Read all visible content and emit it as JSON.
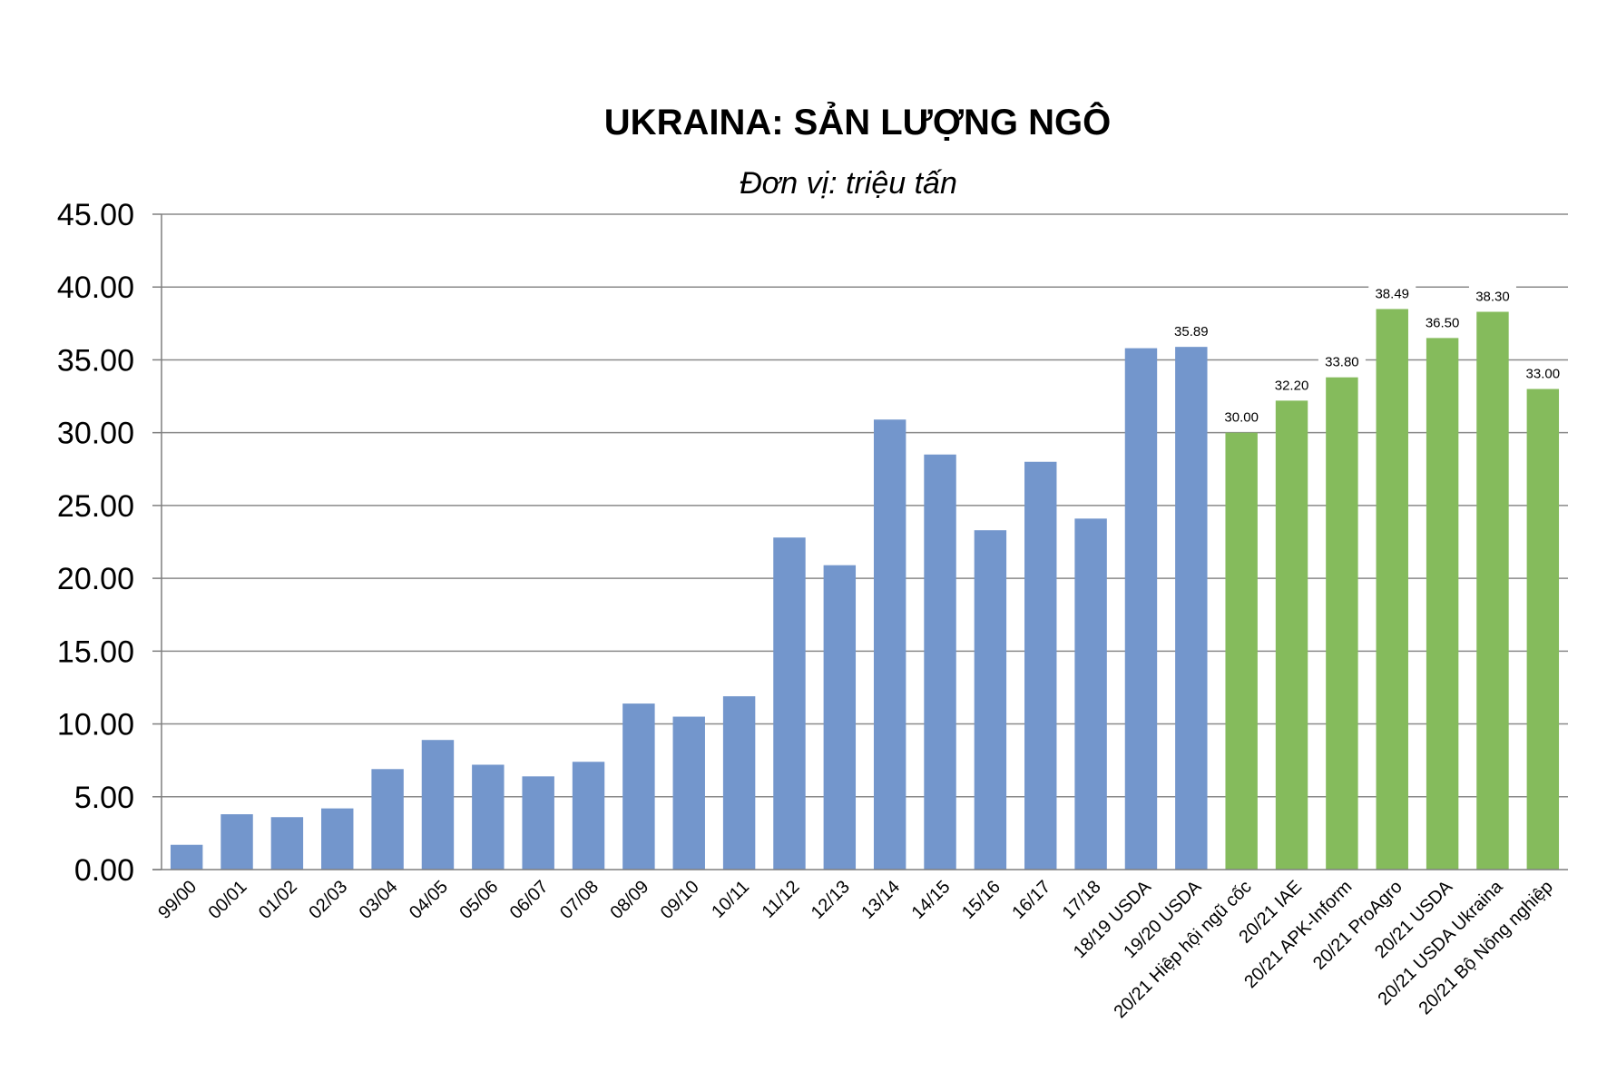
{
  "chart_data": {
    "type": "bar",
    "title": "UKRAINA: SẢN LƯỢNG NGÔ",
    "subtitle": "Đơn vị: triệu tấn",
    "ylim": [
      0,
      45
    ],
    "yticks": [
      "0.00",
      "5.00",
      "10.00",
      "15.00",
      "20.00",
      "25.00",
      "30.00",
      "35.00",
      "40.00",
      "45.00"
    ],
    "grid": true,
    "colors": {
      "historical": "#7396cc",
      "forecast": "#85bb5c",
      "grid": "#8a8a8a",
      "axis": "#7f7f7f"
    },
    "categories": [
      "99/00",
      "00/01",
      "01/02",
      "02/03",
      "03/04",
      "04/05",
      "05/06",
      "06/07",
      "07/08",
      "08/09",
      "09/10",
      "10/11",
      "11/12",
      "12/13",
      "13/14",
      "14/15",
      "15/16",
      "16/17",
      "17/18",
      "18/19 USDA",
      "19/20 USDA",
      "20/21 Hiệp hội ngũ cốc",
      "20/21 IAE",
      "20/21 APK-Inform",
      "20/21 ProAgro",
      "20/21 USDA",
      "20/21 USDA Ukraina",
      "20/21 Bộ Nông nghiệp"
    ],
    "values": [
      1.7,
      3.8,
      3.6,
      4.2,
      6.9,
      8.9,
      7.2,
      6.4,
      7.4,
      11.4,
      10.5,
      11.9,
      22.8,
      20.9,
      30.9,
      28.5,
      23.3,
      28.0,
      24.1,
      35.8,
      35.89,
      30.0,
      32.2,
      33.8,
      38.49,
      36.5,
      38.3,
      33.0
    ],
    "series_group": [
      "historical",
      "historical",
      "historical",
      "historical",
      "historical",
      "historical",
      "historical",
      "historical",
      "historical",
      "historical",
      "historical",
      "historical",
      "historical",
      "historical",
      "historical",
      "historical",
      "historical",
      "historical",
      "historical",
      "historical",
      "historical",
      "forecast",
      "forecast",
      "forecast",
      "forecast",
      "forecast",
      "forecast",
      "forecast"
    ],
    "data_labels": [
      "",
      "",
      "",
      "",
      "",
      "",
      "",
      "",
      "",
      "",
      "",
      "",
      "",
      "",
      "",
      "",
      "",
      "",
      "",
      "",
      "35.89",
      "30.00",
      "32.20",
      "33.80",
      "38.49",
      "36.50",
      "38.30",
      "33.00"
    ]
  }
}
